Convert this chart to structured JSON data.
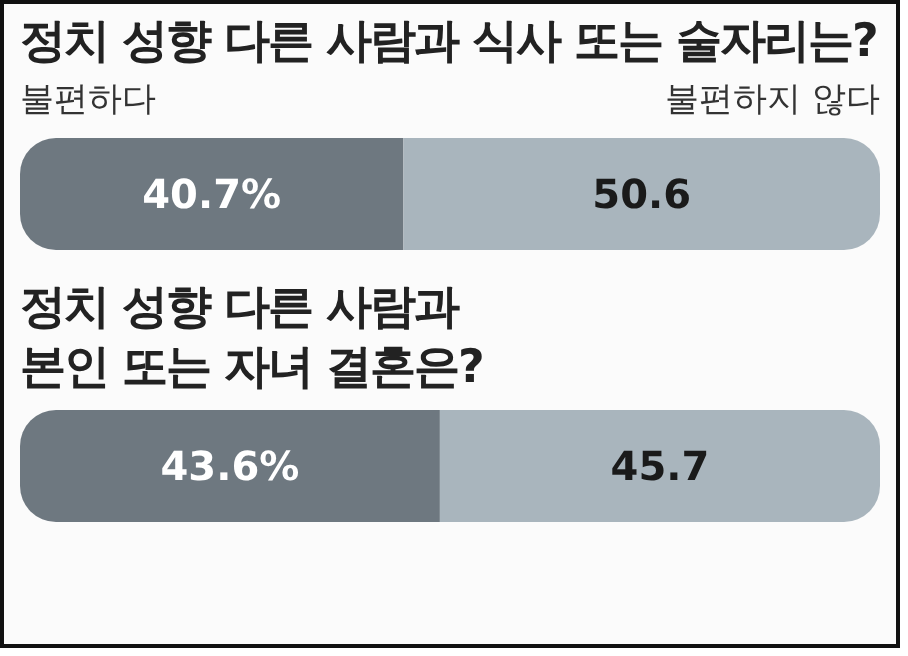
{
  "chart_data": [
    {
      "type": "bar",
      "title": "정치 성향 다른 사람과 식사 또는 술자리는?",
      "orientation": "horizontal",
      "stacked": true,
      "categories": [
        null
      ],
      "xlim": [
        0,
        91.3
      ],
      "tick_labels": false,
      "legend": "top",
      "series": [
        {
          "name": "불편하다",
          "color": "#6e7880",
          "values": [
            40.7
          ],
          "value_labels": [
            "40.7%"
          ]
        },
        {
          "name": "불편하지 않다",
          "color": "#a9b5bd",
          "values": [
            50.6
          ],
          "value_labels": [
            "50.6"
          ]
        }
      ]
    },
    {
      "type": "bar",
      "title": "정치 성향 다른 사람과\n본인 또는 자녀 결혼은?",
      "orientation": "horizontal",
      "stacked": true,
      "categories": [
        null
      ],
      "xlim": [
        0,
        89.3
      ],
      "tick_labels": false,
      "series": [
        {
          "color": "#6e7880",
          "values": [
            43.6
          ],
          "value_labels": [
            "43.6%"
          ]
        },
        {
          "color": "#a9b5bd",
          "values": [
            45.7
          ],
          "value_labels": [
            "45.7"
          ]
        }
      ]
    }
  ]
}
